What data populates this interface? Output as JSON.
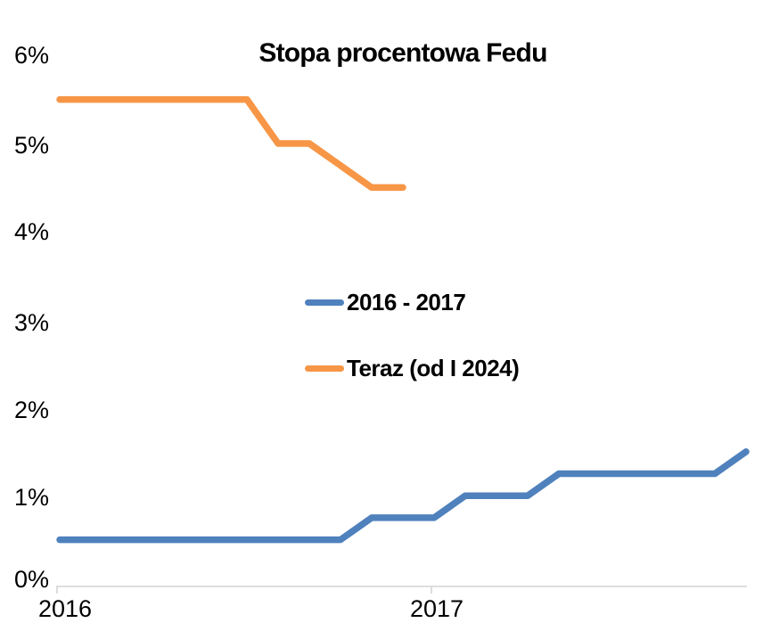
{
  "chart_data": {
    "type": "line",
    "title": "Stopa procentowa Fedu",
    "x_axis": {
      "tick_labels": [
        "2016",
        "2017"
      ],
      "unit": "months from series start",
      "range_months": [
        0,
        22
      ],
      "tick_positions_months": [
        0,
        12
      ]
    },
    "y_axis": {
      "tick_labels_top_to_bottom": [
        "6%",
        "5%",
        "4%",
        "3%",
        "2%",
        "1%",
        "0%"
      ],
      "range": [
        0,
        6
      ],
      "format": "percent"
    },
    "grid": false,
    "legend_position": "middle of plot area, stacked vertically",
    "axis_color": "#D9D9D9",
    "text_color": "#000000",
    "series": [
      {
        "name": "2016 - 2017",
        "color": "#4F81BD",
        "points_month_value": [
          [
            0,
            0.5
          ],
          [
            9,
            0.5
          ],
          [
            10,
            0.75
          ],
          [
            12,
            0.75
          ],
          [
            13,
            1.0
          ],
          [
            15,
            1.0
          ],
          [
            16,
            1.25
          ],
          [
            21,
            1.25
          ],
          [
            22,
            1.5
          ]
        ]
      },
      {
        "name": "Teraz (od I 2024)",
        "color": "#F79646",
        "points_month_value": [
          [
            0,
            5.5
          ],
          [
            6,
            5.5
          ],
          [
            7,
            5.0
          ],
          [
            8,
            5.0
          ],
          [
            10,
            4.5
          ],
          [
            11,
            4.5
          ]
        ]
      }
    ]
  }
}
